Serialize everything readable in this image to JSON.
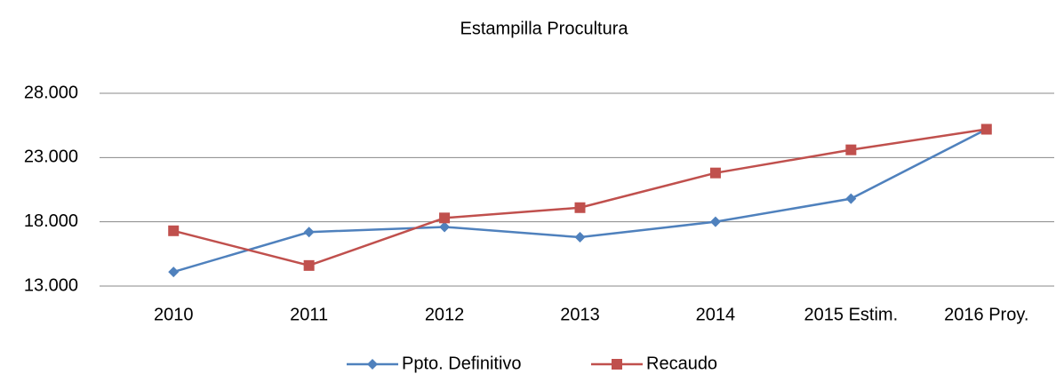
{
  "chart_data": {
    "type": "line",
    "title": "Estampilla  Procultura",
    "categories": [
      "2010",
      "2011",
      "2012",
      "2013",
      "2014",
      "2015 Estim.",
      "2016 Proy."
    ],
    "series": [
      {
        "name": "Ppto. Definitivo",
        "color": "#4f81bd",
        "marker": "diamond",
        "values": [
          14100,
          17200,
          17600,
          16800,
          18000,
          19800,
          25200
        ]
      },
      {
        "name": "Recaudo",
        "color": "#c0504d",
        "marker": "square",
        "values": [
          17300,
          14600,
          18300,
          19100,
          21800,
          23600,
          25200
        ]
      }
    ],
    "ylim": [
      13000,
      28000
    ],
    "yticks": [
      {
        "value": 13000,
        "label": "13.000"
      },
      {
        "value": 18000,
        "label": "18.000"
      },
      {
        "value": 23000,
        "label": "23.000"
      },
      {
        "value": 28000,
        "label": "28.000"
      }
    ],
    "grid": true,
    "legend": "bottom"
  }
}
